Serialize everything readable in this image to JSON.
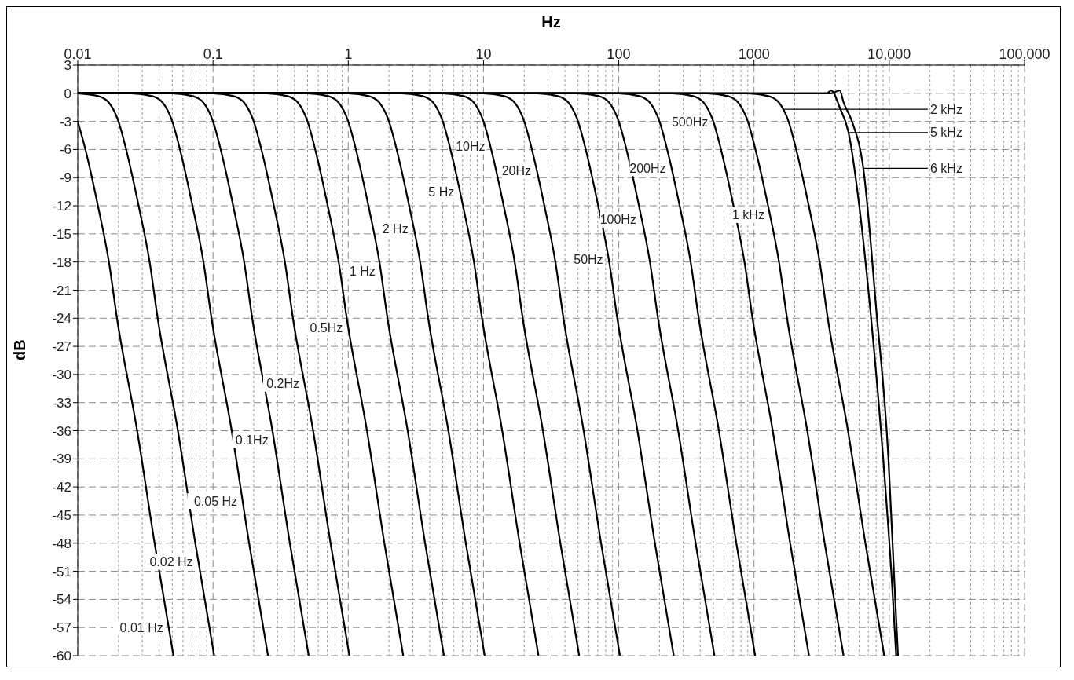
{
  "chart_data": {
    "type": "line",
    "xlabel": "Hz",
    "ylabel": "dB",
    "log": "x",
    "grid": true,
    "xlim": [
      0.01,
      100000
    ],
    "xticks": [
      0.01,
      0.1,
      1,
      10,
      100,
      1000,
      {
        "value": 10000,
        "label": "10,000"
      },
      {
        "value": 100000,
        "label": "100,000"
      }
    ],
    "ylim": [
      -60,
      3
    ],
    "yticks": [
      3,
      0,
      -3,
      -6,
      -9,
      -12,
      -15,
      -18,
      -21,
      -24,
      -27,
      -30,
      -33,
      -36,
      -39,
      -42,
      -45,
      -48,
      -51,
      -54,
      -57,
      -60
    ],
    "series": [
      {
        "color": "#000000",
        "x": [
          0.01,
          0.0114,
          0.0141,
          0.017,
          0.0195,
          0.0275,
          0.037,
          0.051
        ],
        "values": [
          -3,
          -6,
          -12,
          -18,
          -24,
          -36,
          -48,
          -60
        ]
      },
      {
        "color": "#000000",
        "x": [
          0.01,
          0.0142,
          0.017,
          0.02,
          0.0228,
          0.0282,
          0.034,
          0.039,
          0.055,
          0.074,
          0.102
        ],
        "values": [
          0,
          -0.3,
          -1,
          -3,
          -6,
          -12,
          -18,
          -24,
          -36,
          -48,
          -60
        ]
      },
      {
        "color": "#000000",
        "x": [
          0.01,
          0.025,
          0.0355,
          0.0425,
          0.05,
          0.057,
          0.0705,
          0.085,
          0.0975,
          0.1375,
          0.185,
          0.255
        ],
        "values": [
          0,
          0,
          -0.3,
          -1,
          -3,
          -6,
          -12,
          -18,
          -24,
          -36,
          -48,
          -60
        ]
      },
      {
        "color": "#000000",
        "x": [
          0.01,
          0.05,
          0.071,
          0.085,
          0.1,
          0.114,
          0.141,
          0.17,
          0.195,
          0.275,
          0.37,
          0.51
        ],
        "values": [
          0,
          0,
          -0.3,
          -1,
          -3,
          -6,
          -12,
          -18,
          -24,
          -36,
          -48,
          -60
        ]
      },
      {
        "color": "#000000",
        "x": [
          0.01,
          0.1,
          0.142,
          0.17,
          0.2,
          0.228,
          0.282,
          0.34,
          0.39,
          0.55,
          0.74,
          1.02
        ],
        "values": [
          0,
          0,
          -0.3,
          -1,
          -3,
          -6,
          -12,
          -18,
          -24,
          -36,
          -48,
          -60
        ]
      },
      {
        "color": "#000000",
        "x": [
          0.01,
          0.25,
          0.355,
          0.425,
          0.5,
          0.57,
          0.705,
          0.85,
          0.975,
          1.375,
          1.85,
          2.55
        ],
        "values": [
          0,
          0,
          -0.3,
          -1,
          -3,
          -6,
          -12,
          -18,
          -24,
          -36,
          -48,
          -60
        ]
      },
      {
        "color": "#000000",
        "x": [
          0.01,
          0.5,
          0.71,
          0.85,
          1,
          1.14,
          1.41,
          1.7,
          1.95,
          2.75,
          3.7,
          5.1
        ],
        "values": [
          0,
          0,
          -0.3,
          -1,
          -3,
          -6,
          -12,
          -18,
          -24,
          -36,
          -48,
          -60
        ]
      },
      {
        "color": "#000000",
        "x": [
          0.01,
          1,
          1.42,
          1.7,
          2,
          2.28,
          2.82,
          3.4,
          3.9,
          5.5,
          7.4,
          10.2
        ],
        "values": [
          0,
          0,
          -0.3,
          -1,
          -3,
          -6,
          -12,
          -18,
          -24,
          -36,
          -48,
          -60
        ]
      },
      {
        "color": "#000000",
        "x": [
          0.01,
          2.5,
          3.55,
          4.25,
          5,
          5.7,
          7.05,
          8.5,
          9.75,
          13.75,
          18.5,
          25.5
        ],
        "values": [
          0,
          0,
          -0.3,
          -1,
          -3,
          -6,
          -12,
          -18,
          -24,
          -36,
          -48,
          -60
        ]
      },
      {
        "color": "#000000",
        "x": [
          0.01,
          5,
          7.1,
          8.5,
          10,
          11.4,
          14.1,
          17,
          19.5,
          27.5,
          37,
          51
        ],
        "values": [
          0,
          0,
          -0.3,
          -1,
          -3,
          -6,
          -12,
          -18,
          -24,
          -36,
          -48,
          -60
        ]
      },
      {
        "color": "#000000",
        "x": [
          0.01,
          10,
          14.2,
          17,
          20,
          22.8,
          28.2,
          34,
          39,
          55,
          74,
          102
        ],
        "values": [
          0,
          0,
          -0.3,
          -1,
          -3,
          -6,
          -12,
          -18,
          -24,
          -36,
          -48,
          -60
        ]
      },
      {
        "color": "#000000",
        "x": [
          0.01,
          25,
          35.5,
          42.5,
          50,
          57,
          70.5,
          85,
          97.5,
          137.5,
          185,
          255
        ],
        "values": [
          0,
          0,
          -0.3,
          -1,
          -3,
          -6,
          -12,
          -18,
          -24,
          -36,
          -48,
          -60
        ]
      },
      {
        "color": "#000000",
        "x": [
          0.01,
          50,
          71,
          85,
          100,
          114,
          141,
          170,
          195,
          275,
          370,
          510
        ],
        "values": [
          0,
          0,
          -0.3,
          -1,
          -3,
          -6,
          -12,
          -18,
          -24,
          -36,
          -48,
          -60
        ]
      },
      {
        "color": "#000000",
        "x": [
          0.01,
          100,
          142,
          170,
          200,
          228,
          282,
          340,
          390,
          550,
          740,
          1020
        ],
        "values": [
          0,
          0,
          -0.3,
          -1,
          -3,
          -6,
          -12,
          -18,
          -24,
          -36,
          -48,
          -60
        ]
      },
      {
        "color": "#000000",
        "x": [
          0.01,
          250,
          355,
          425,
          500,
          570,
          705,
          850,
          975,
          1375,
          1850,
          2550
        ],
        "values": [
          0,
          0,
          -0.3,
          -1,
          -3,
          -6,
          -12,
          -18,
          -24,
          -36,
          -48,
          -60
        ]
      },
      {
        "color": "#000000",
        "x": [
          0.01,
          450,
          640,
          765,
          900,
          1025,
          1270,
          1530,
          1755,
          2475,
          3330,
          4590
        ],
        "values": [
          0,
          0,
          -0.3,
          -1,
          -3,
          -6,
          -12,
          -18,
          -24,
          -36,
          -48,
          -60
        ]
      },
      {
        "color": "#000000",
        "x": [
          0.01,
          900,
          1280,
          1530,
          1800,
          2050,
          2540,
          3060,
          3510,
          4950,
          6660,
          9180
        ],
        "values": [
          0,
          0,
          -0.3,
          -1,
          -3,
          -6,
          -12,
          -18,
          -24,
          -36,
          -48,
          -60
        ]
      },
      {
        "color": "#000000",
        "x": [
          0.01,
          3450,
          3720,
          4300,
          5000,
          6000,
          7230,
          9020,
          10450,
          11250
        ],
        "values": [
          0,
          0,
          0.3,
          -1.5,
          -4.2,
          -12,
          -23,
          -39,
          -52,
          -60
        ]
      },
      {
        "color": "#000000",
        "x": [
          0.01,
          3700,
          4300,
          4600,
          5300,
          6430,
          8010,
          9860,
          10900,
          11600
        ],
        "values": [
          0,
          0,
          0.3,
          -1,
          -3,
          -8,
          -23,
          -39,
          -52,
          -60
        ]
      }
    ],
    "annotations": [
      {
        "text": "0.01 Hz",
        "x": 0.047,
        "y": -57
      },
      {
        "text": "0.02 Hz",
        "x": 0.078,
        "y": -50
      },
      {
        "text": "0.05 Hz",
        "x": 0.166,
        "y": -43.5
      },
      {
        "text": "0.1Hz",
        "x": 0.282,
        "y": -37
      },
      {
        "text": "0.2Hz",
        "x": 0.477,
        "y": -31
      },
      {
        "text": "0.5Hz",
        "x": 1.0,
        "y": -25
      },
      {
        "text": "1 Hz",
        "x": 1.74,
        "y": -19
      },
      {
        "text": "2 Hz",
        "x": 3.05,
        "y": -14.5
      },
      {
        "text": "5 Hz",
        "x": 6.68,
        "y": -10.5
      },
      {
        "text": "10Hz",
        "x": 11.3,
        "y": -5.7
      },
      {
        "text": "20Hz",
        "x": 24.7,
        "y": -8.3
      },
      {
        "text": "50Hz",
        "x": 84.1,
        "y": -17.7
      },
      {
        "text": "100Hz",
        "x": 148,
        "y": -13.5
      },
      {
        "text": "200Hz",
        "x": 245,
        "y": -8
      },
      {
        "text": "500Hz",
        "x": 502,
        "y": -3.1
      },
      {
        "text": "1 kHz",
        "x": 1310,
        "y": -13
      },
      {
        "text": "2 kHz",
        "x": 1620,
        "y": -1.7
      },
      {
        "text": "5 kHz",
        "x": 5000,
        "y": -4.2
      },
      {
        "text": "6 kHz",
        "x": 6430,
        "y": -8
      }
    ]
  }
}
